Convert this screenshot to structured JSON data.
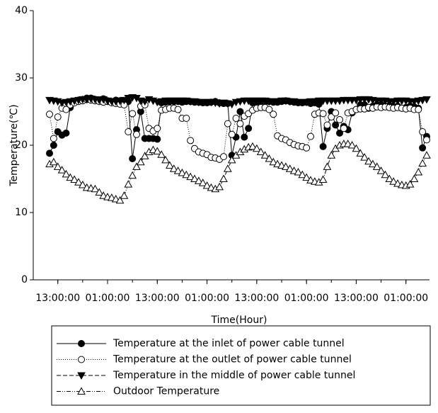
{
  "chart_data": {
    "type": "line",
    "x_label": "Time(Hour)",
    "y_label": "Temperature(℃)",
    "categories": [
      null,
      null,
      "13:00:00",
      null,
      null,
      null,
      null,
      null,
      null,
      null,
      null,
      null,
      null,
      null,
      "01:00:00",
      null,
      null,
      null,
      null,
      null,
      null,
      null,
      null,
      null,
      null,
      null,
      "13:00:00",
      null,
      null,
      null,
      null,
      null,
      null,
      null,
      null,
      null,
      null,
      null,
      "01:00:00",
      null,
      null,
      null,
      null,
      null,
      null,
      null,
      null,
      null,
      null,
      null,
      "13:00:00",
      null,
      null,
      null,
      null,
      null,
      null,
      null,
      null,
      null,
      null,
      null,
      "01:00:00",
      null,
      null,
      null,
      null,
      null,
      null,
      null,
      null,
      null,
      null,
      null,
      "13:00:00",
      null,
      null,
      null,
      null,
      null,
      null,
      null,
      null,
      null,
      null,
      null,
      "01:00:00",
      null,
      null,
      null,
      null,
      null
    ],
    "ylim": [
      0,
      40
    ],
    "yticks": [
      0,
      10,
      20,
      30,
      40
    ],
    "series": [
      {
        "name": "Temperature at the inlet of power cable tunnel",
        "color": "#000000",
        "marker": "circle",
        "filled": true,
        "dash": "solid",
        "values": [
          18.8,
          20.0,
          22.0,
          21.5,
          21.8,
          25.6,
          26.5,
          26.7,
          26.8,
          27.0,
          27.0,
          26.8,
          26.7,
          26.9,
          26.6,
          26.5,
          26.7,
          26.6,
          26.4,
          26.5,
          18.0,
          22.3,
          25.0,
          21.0,
          21.0,
          21.0,
          20.9,
          26.3,
          26.4,
          26.5,
          26.5,
          26.5,
          26.4,
          26.5,
          26.5,
          26.4,
          26.4,
          26.3,
          26.3,
          26.4,
          26.5,
          26.3,
          26.2,
          26.2,
          18.5,
          21.2,
          25.0,
          21.2,
          22.5,
          26.3,
          26.4,
          26.5,
          26.5,
          26.5,
          26.4,
          26.4,
          26.5,
          26.6,
          26.5,
          26.4,
          26.3,
          26.3,
          26.4,
          26.2,
          26.3,
          26.1,
          19.8,
          22.5,
          25.0,
          23.0,
          21.8,
          22.8,
          22.3,
          24.8,
          25.3,
          26.0,
          26.0,
          25.5,
          25.8,
          26.0,
          26.0,
          25.8,
          25.9,
          25.7,
          25.8,
          25.5,
          25.6,
          25.8,
          25.7,
          25.5,
          19.6,
          21.3
        ]
      },
      {
        "name": "Temperature at the outlet of power cable tunnel",
        "color": "#000000",
        "marker": "circle",
        "filled": false,
        "dash": "dotted",
        "values": [
          24.6,
          21.0,
          24.2,
          25.5,
          25.3,
          26.0,
          26.3,
          26.5,
          26.6,
          26.8,
          26.7,
          26.6,
          26.5,
          26.4,
          26.5,
          26.3,
          26.2,
          26.1,
          26.0,
          22.0,
          24.7,
          21.6,
          25.8,
          26.0,
          22.5,
          22.1,
          22.5,
          25.2,
          25.3,
          25.5,
          25.5,
          25.3,
          24.0,
          24.0,
          20.7,
          19.5,
          19.0,
          18.8,
          18.6,
          18.2,
          18.1,
          17.9,
          18.3,
          23.2,
          21.6,
          24.0,
          23.2,
          24.3,
          24.7,
          25.2,
          25.5,
          25.6,
          25.6,
          25.3,
          24.6,
          21.4,
          21.0,
          20.8,
          20.4,
          20.1,
          19.9,
          19.8,
          19.6,
          21.3,
          24.6,
          24.8,
          24.7,
          23.0,
          24.2,
          24.8,
          23.8,
          22.5,
          24.8,
          25.0,
          25.3,
          25.4,
          25.4,
          25.6,
          25.5,
          25.7,
          25.6,
          25.7,
          25.6,
          25.5,
          25.6,
          25.5,
          25.4,
          25.5,
          25.3,
          25.3,
          22.0,
          20.8
        ]
      },
      {
        "name": "Temperature in the middle of power cable tunnel",
        "color": "#000000",
        "marker": "triangle-down",
        "filled": true,
        "dash": "dashed",
        "values": [
          26.7,
          26.6,
          26.5,
          26.3,
          26.4,
          26.5,
          26.6,
          26.7,
          26.8,
          26.8,
          26.9,
          26.8,
          26.7,
          26.8,
          26.6,
          26.5,
          26.5,
          26.6,
          26.7,
          27.0,
          27.1,
          27.0,
          26.6,
          26.5,
          26.8,
          26.6,
          26.4,
          26.5,
          26.6,
          26.6,
          26.6,
          26.6,
          26.6,
          26.6,
          26.5,
          26.5,
          26.4,
          26.4,
          26.4,
          26.4,
          26.3,
          26.2,
          26.3,
          26.2,
          26.1,
          26.4,
          26.5,
          26.6,
          26.6,
          26.6,
          26.6,
          26.6,
          26.6,
          26.5,
          26.5,
          26.5,
          26.6,
          26.6,
          26.5,
          26.5,
          26.4,
          26.4,
          26.4,
          26.5,
          26.5,
          26.6,
          26.6,
          26.6,
          26.6,
          26.6,
          26.6,
          26.7,
          26.7,
          26.7,
          26.7,
          26.8,
          26.8,
          26.8,
          26.7,
          26.6,
          26.6,
          26.6,
          26.5,
          26.5,
          26.6,
          26.6,
          26.6,
          26.5,
          26.5,
          26.6,
          26.7,
          26.8
        ]
      },
      {
        "name": "Outdoor Temperature",
        "color": "#000000",
        "marker": "triangle-up",
        "filled": false,
        "dash": "dashdotdot",
        "values": [
          17.2,
          17.5,
          16.8,
          16.3,
          15.7,
          15.2,
          14.9,
          14.5,
          14.1,
          13.7,
          13.6,
          13.5,
          13.0,
          12.5,
          12.3,
          12.2,
          12.0,
          11.8,
          12.5,
          14.2,
          15.5,
          16.8,
          17.5,
          18.4,
          19.0,
          19.3,
          19.1,
          18.6,
          17.8,
          17.0,
          16.5,
          16.2,
          15.9,
          15.6,
          15.3,
          15.0,
          14.7,
          14.4,
          14.0,
          13.7,
          13.5,
          13.8,
          15.0,
          16.5,
          17.8,
          18.5,
          19.0,
          19.4,
          19.7,
          19.8,
          19.5,
          19.0,
          18.5,
          18.0,
          17.5,
          17.2,
          17.0,
          16.8,
          16.5,
          16.2,
          16.0,
          15.6,
          15.2,
          14.8,
          14.6,
          14.5,
          14.9,
          16.8,
          18.5,
          19.5,
          20.0,
          20.2,
          20.2,
          20.0,
          19.5,
          18.8,
          18.2,
          17.6,
          17.2,
          16.8,
          16.2,
          15.6,
          15.0,
          14.6,
          14.3,
          14.1,
          14.0,
          14.2,
          15.0,
          16.0,
          17.3,
          18.5
        ]
      }
    ]
  }
}
